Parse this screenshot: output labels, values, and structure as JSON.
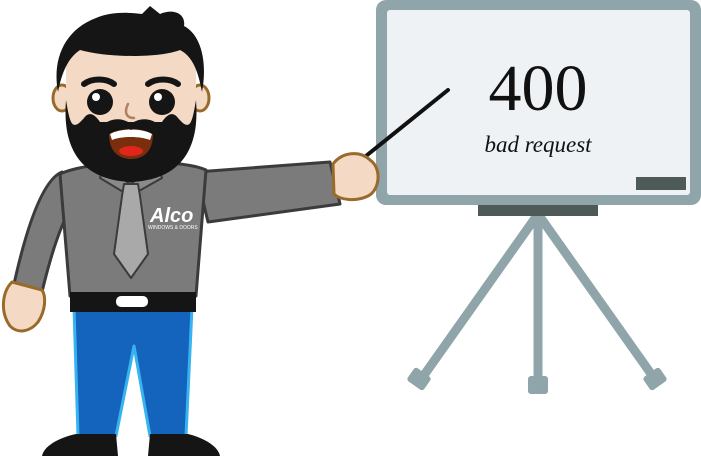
{
  "error_board": {
    "code": "400",
    "message": "bad request"
  },
  "character": {
    "shirt_logo_text": "Alco",
    "shirt_logo_subtext": "WINDOWS & DOORS",
    "icon": "presenter-icon"
  },
  "colors": {
    "board_frame": "#8fa5a9",
    "board_surface": "#eef2f4",
    "board_tray": "#4e5a58",
    "shirt": "#7b7b7b",
    "tie": "#a9a9a9",
    "jeans": "#1464bd",
    "jeans_outline": "#37b4f0",
    "skin": "#f4d9c4",
    "skin_outline": "#9a6a2a",
    "hair": "#151515"
  }
}
